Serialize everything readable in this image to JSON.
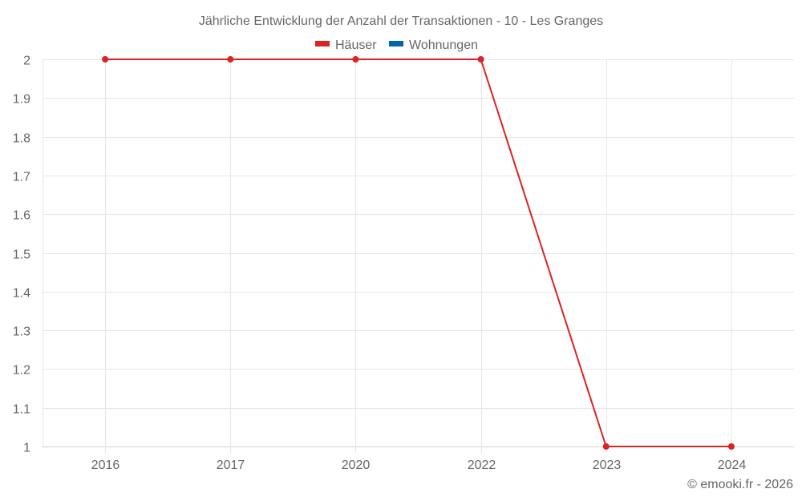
{
  "chart_data": {
    "type": "line",
    "title": "Jährliche Entwicklung der Anzahl der Transaktionen - 10 - Les Granges",
    "xlabel": "",
    "ylabel": "",
    "categories": [
      "2016",
      "2017",
      "2020",
      "2022",
      "2023",
      "2024"
    ],
    "series": [
      {
        "name": "Häuser",
        "color": "#dd2222",
        "values": [
          2,
          2,
          2,
          2,
          1,
          1
        ]
      },
      {
        "name": "Wohnungen",
        "color": "#0066aa",
        "values": []
      }
    ],
    "ylim": [
      1,
      2
    ],
    "yticks": [
      "1",
      "1.1",
      "1.2",
      "1.3",
      "1.4",
      "1.5",
      "1.6",
      "1.7",
      "1.8",
      "1.9",
      "2"
    ],
    "grid": true,
    "legend_position": "top-center"
  },
  "credit": "© emooki.fr - 2026",
  "colors": {
    "grid": "#e6e6e6",
    "axis": "#d0d0d0",
    "text": "#666666"
  }
}
